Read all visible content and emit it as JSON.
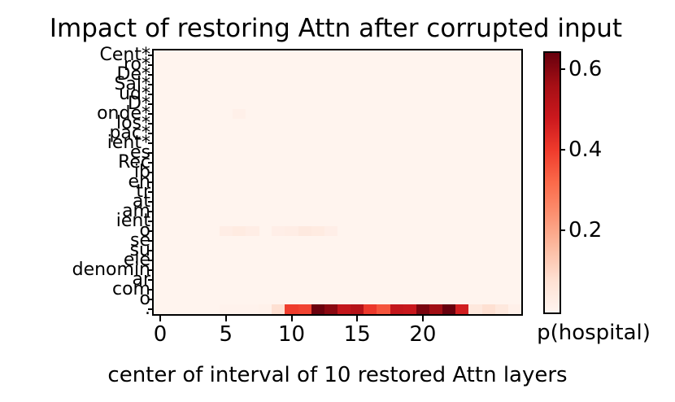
{
  "chart_data": {
    "type": "heatmap",
    "title": "Impact of restoring Attn after corrupted input",
    "xlabel": "center of interval of 10 restored Attn layers",
    "colorbar_label": "p(hospital)",
    "colormap": "Reds",
    "vmin": 0,
    "vmax": 0.645,
    "n_cols": 28,
    "x_tick_cols": [
      0,
      5,
      10,
      15,
      20
    ],
    "x_tick_labels": [
      "0",
      "5",
      "10",
      "15",
      "20"
    ],
    "row_labels": [
      "Cent*",
      "ro*",
      "De*",
      "Sal*",
      "ud*",
      "D*",
      "onde*",
      "los*",
      "pac*",
      "ient*",
      "es",
      "Rec",
      "ib",
      "en",
      "tr",
      "at",
      "am",
      "ient",
      "o",
      "se",
      "su",
      "ele",
      "denomin",
      "ar",
      "com",
      "o",
      "."
    ],
    "corrupted_token_count": 10,
    "colorbar_ticks": [
      0.2,
      0.4,
      0.6
    ],
    "colorbar_tick_labels": [
      "0.2",
      "0.4",
      "0.6"
    ],
    "default_value": 0.005,
    "cell_overrides": [
      {
        "row": 6,
        "cells": {
          "6": 0.02
        }
      },
      {
        "row": 18,
        "cells": {
          "5": 0.03,
          "6": 0.04,
          "7": 0.03,
          "9": 0.025,
          "10": 0.03,
          "11": 0.045,
          "12": 0.04,
          "13": 0.025
        }
      },
      {
        "row": 26,
        "values": [
          0.005,
          0.005,
          0.005,
          0.005,
          0.005,
          0.01,
          0.01,
          0.01,
          0.015,
          0.08,
          0.4,
          0.39,
          0.64,
          0.6,
          0.5,
          0.53,
          0.41,
          0.36,
          0.5,
          0.49,
          0.62,
          0.57,
          0.645,
          0.47,
          0.05,
          0.08,
          0.05,
          0.02
        ]
      }
    ],
    "reds_stops": [
      "#fff5f0",
      "#fee0d2",
      "#fcbba1",
      "#fc9272",
      "#fb6a4a",
      "#ef3b2c",
      "#cb181d",
      "#a50f15",
      "#67000d"
    ],
    "colors": {
      "text": "#000000",
      "axes": "#000000",
      "plot_background": "#fff5f0"
    }
  }
}
